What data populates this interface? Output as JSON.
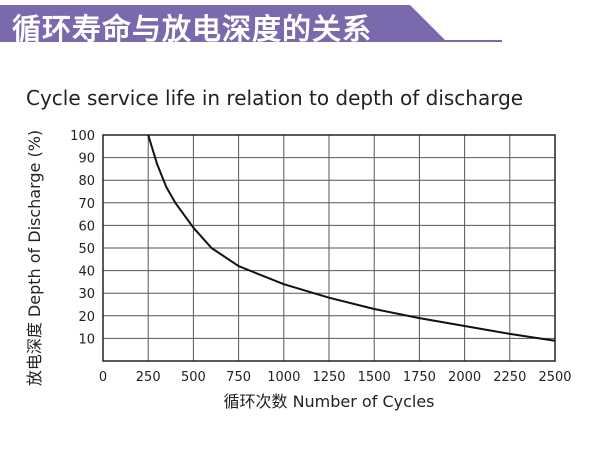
{
  "banner": {
    "title": "循环寿命与放电深度的关系",
    "color": "#7a6aad"
  },
  "chart_data": {
    "type": "line",
    "title": "Cycle service life in relation to depth of discharge",
    "xlabel": "循环次数 Number of Cycles",
    "ylabel": "放电深度 Depth of Discharge (%)",
    "xlim": [
      0,
      2500
    ],
    "ylim": [
      0,
      100
    ],
    "xticks": [
      "0",
      "250",
      "500",
      "750",
      "1000",
      "1250",
      "1500",
      "1750",
      "2000",
      "2250",
      "2500"
    ],
    "yticks": [
      "10",
      "20",
      "30",
      "40",
      "50",
      "60",
      "70",
      "80",
      "90",
      "100"
    ],
    "grid": true,
    "line_color": "#111111",
    "x": [
      250,
      300,
      350,
      400,
      500,
      600,
      750,
      1000,
      1250,
      1500,
      1750,
      2000,
      2250,
      2500
    ],
    "y": [
      100,
      87,
      77,
      70,
      59,
      50,
      42,
      34,
      28,
      23,
      19,
      15.5,
      12,
      9
    ]
  }
}
